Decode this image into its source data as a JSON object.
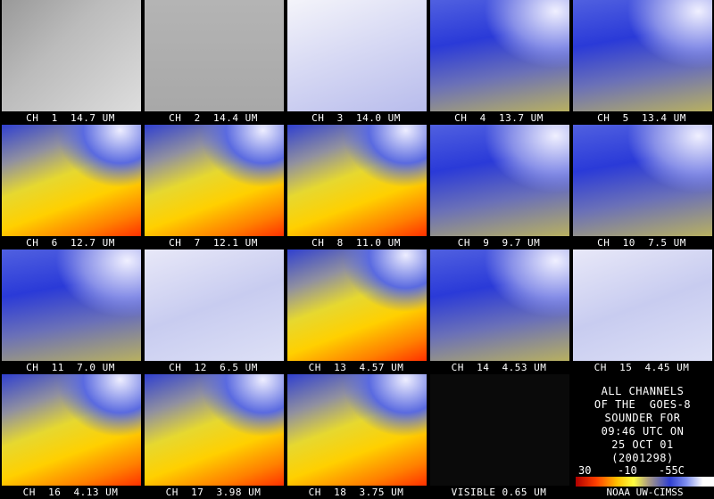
{
  "panels": [
    {
      "label": "CH  1  14.7 UM"
    },
    {
      "label": "CH  2  14.4 UM"
    },
    {
      "label": "CH  3  14.0 UM"
    },
    {
      "label": "CH  4  13.7 UM"
    },
    {
      "label": "CH  5  13.4 UM"
    },
    {
      "label": "CH  6  12.7 UM"
    },
    {
      "label": "CH  7  12.1 UM"
    },
    {
      "label": "CH  8  11.0 UM"
    },
    {
      "label": "CH  9  9.7 UM"
    },
    {
      "label": "CH  10  7.5 UM"
    },
    {
      "label": "CH  11  7.0 UM"
    },
    {
      "label": "CH  12  6.5 UM"
    },
    {
      "label": "CH  13  4.57 UM"
    },
    {
      "label": "CH  14  4.53 UM"
    },
    {
      "label": "CH  15  4.45 UM"
    },
    {
      "label": "CH  16  4.13 UM"
    },
    {
      "label": "CH  17  3.98 UM"
    },
    {
      "label": "CH  18  3.75 UM"
    },
    {
      "label": "VISIBLE 0.65 UM"
    }
  ],
  "info": {
    "lines": [
      "ALL CHANNELS",
      "OF THE  GOES-8",
      "SOUNDER FOR",
      "09:46 UTC ON",
      "25 OCT 01",
      "(2001298)"
    ],
    "scale_labels": [
      "30",
      "-10",
      "-55C"
    ],
    "credit": "NOAA UW-CIMSS"
  }
}
